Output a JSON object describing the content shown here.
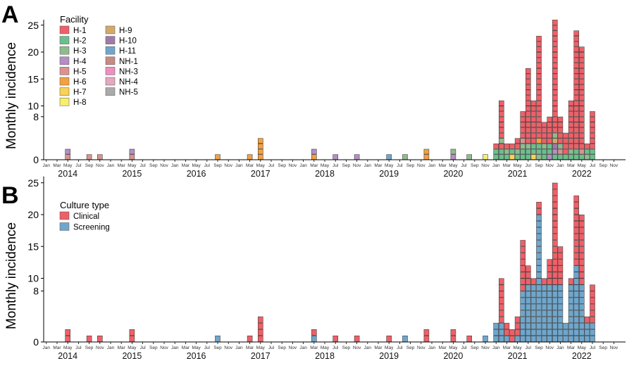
{
  "figure": {
    "months_axis": [
      "Jan",
      "Mar",
      "May",
      "Jul",
      "Sep",
      "Nov"
    ],
    "years": [
      "2014",
      "2015",
      "2016",
      "2017",
      "2018",
      "2019",
      "2020",
      "2021",
      "2022"
    ],
    "y_ticks": [
      0,
      8,
      10,
      15,
      20,
      25
    ],
    "panels": [
      {
        "letter": "A",
        "ylabel": "Monthly incidence",
        "legend_title": "Facility"
      },
      {
        "letter": "B",
        "ylabel": "Monthly incidence",
        "legend_title": "Culture type"
      }
    ]
  },
  "chart_data": [
    {
      "type": "bar",
      "stacked": true,
      "title": "",
      "xlabel": "",
      "ylabel": "Monthly incidence",
      "x_range": [
        "2013-12",
        "2022-12"
      ],
      "ylim": [
        0,
        26
      ],
      "y_ticks": [
        0,
        8,
        10,
        15,
        20,
        25
      ],
      "grid": false,
      "legend_position": "top-left",
      "legend_title": "Facility",
      "series": [
        {
          "name": "H-1",
          "color": "#ee6068"
        },
        {
          "name": "H-2",
          "color": "#6cbf8c"
        },
        {
          "name": "H-3",
          "color": "#8fbc8f"
        },
        {
          "name": "H-4",
          "color": "#b48ec4"
        },
        {
          "name": "H-5",
          "color": "#d9938f"
        },
        {
          "name": "H-6",
          "color": "#f4a040"
        },
        {
          "name": "H-7",
          "color": "#fad256"
        },
        {
          "name": "H-8",
          "color": "#f7ee6e"
        },
        {
          "name": "H-9",
          "color": "#d5a96a"
        },
        {
          "name": "H-10",
          "color": "#a27aa8"
        },
        {
          "name": "H-11",
          "color": "#6fa6cc"
        },
        {
          "name": "NH-1",
          "color": "#c78a84"
        },
        {
          "name": "NH-3",
          "color": "#ef8fc0"
        },
        {
          "name": "NH-4",
          "color": "#e2a9c0"
        },
        {
          "name": "NH-5",
          "color": "#aaaaaa"
        }
      ],
      "bars": [
        {
          "month": "2014-05",
          "segments": [
            [
              "H-5",
              1
            ],
            [
              "H-4",
              1
            ]
          ]
        },
        {
          "month": "2014-09",
          "segments": [
            [
              "H-5",
              1
            ]
          ]
        },
        {
          "month": "2014-11",
          "segments": [
            [
              "H-5",
              1
            ]
          ]
        },
        {
          "month": "2015-05",
          "segments": [
            [
              "H-5",
              1
            ],
            [
              "H-4",
              1
            ]
          ]
        },
        {
          "month": "2016-09",
          "segments": [
            [
              "H-6",
              1
            ]
          ]
        },
        {
          "month": "2017-03",
          "segments": [
            [
              "H-6",
              1
            ]
          ]
        },
        {
          "month": "2017-05",
          "segments": [
            [
              "H-6",
              4
            ]
          ]
        },
        {
          "month": "2018-03",
          "segments": [
            [
              "H-6",
              1
            ],
            [
              "H-4",
              1
            ]
          ]
        },
        {
          "month": "2018-07",
          "segments": [
            [
              "H-4",
              1
            ]
          ]
        },
        {
          "month": "2018-11",
          "segments": [
            [
              "H-4",
              1
            ]
          ]
        },
        {
          "month": "2019-05",
          "segments": [
            [
              "H-11",
              1
            ]
          ]
        },
        {
          "month": "2019-08",
          "segments": [
            [
              "H-3",
              1
            ]
          ]
        },
        {
          "month": "2019-12",
          "segments": [
            [
              "H-6",
              2
            ]
          ]
        },
        {
          "month": "2020-05",
          "segments": [
            [
              "H-4",
              1
            ],
            [
              "H-3",
              1
            ]
          ]
        },
        {
          "month": "2020-08",
          "segments": [
            [
              "H-3",
              1
            ]
          ]
        },
        {
          "month": "2020-11",
          "segments": [
            [
              "H-8",
              1
            ]
          ]
        },
        {
          "month": "2021-01",
          "segments": [
            [
              "H-2",
              2
            ],
            [
              "H-1",
              1
            ]
          ]
        },
        {
          "month": "2021-02",
          "segments": [
            [
              "H-2",
              2
            ],
            [
              "H-1",
              1
            ],
            [
              "H-3",
              1
            ],
            [
              "H-1",
              7
            ]
          ]
        },
        {
          "month": "2021-03",
          "segments": [
            [
              "H-2",
              1
            ],
            [
              "H-3",
              1
            ],
            [
              "H-1",
              1
            ]
          ]
        },
        {
          "month": "2021-04",
          "segments": [
            [
              "H-7",
              1
            ],
            [
              "H-2",
              1
            ],
            [
              "H-1",
              1
            ]
          ]
        },
        {
          "month": "2021-05",
          "segments": [
            [
              "H-2",
              1
            ],
            [
              "H-3",
              1
            ],
            [
              "H-1",
              2
            ]
          ]
        },
        {
          "month": "2021-06",
          "segments": [
            [
              "H-2",
              2
            ],
            [
              "H-3",
              1
            ],
            [
              "H-5",
              1
            ],
            [
              "H-1",
              5
            ]
          ]
        },
        {
          "month": "2021-07",
          "segments": [
            [
              "H-2",
              2
            ],
            [
              "H-3",
              1
            ],
            [
              "H-1",
              14
            ]
          ]
        },
        {
          "month": "2021-08",
          "segments": [
            [
              "H-7",
              1
            ],
            [
              "H-2",
              2
            ],
            [
              "H-1",
              8
            ]
          ]
        },
        {
          "month": "2021-09",
          "segments": [
            [
              "H-3",
              1
            ],
            [
              "H-2",
              2
            ],
            [
              "H-6",
              1
            ],
            [
              "H-1",
              19
            ]
          ]
        },
        {
          "month": "2021-10",
          "segments": [
            [
              "H-2",
              2
            ],
            [
              "H-3",
              1
            ],
            [
              "H-1",
              4
            ]
          ]
        },
        {
          "month": "2021-11",
          "segments": [
            [
              "H-4",
              1
            ],
            [
              "H-2",
              2
            ],
            [
              "H-1",
              5
            ]
          ]
        },
        {
          "month": "2021-12",
          "segments": [
            [
              "H-2",
              1
            ],
            [
              "H-4",
              1
            ],
            [
              "H-10",
              1
            ],
            [
              "H-9",
              1
            ],
            [
              "H-3",
              1
            ],
            [
              "H-1",
              21
            ]
          ]
        },
        {
          "month": "2022-01",
          "segments": [
            [
              "H-2",
              1
            ],
            [
              "H-5",
              1
            ],
            [
              "H-3",
              1
            ],
            [
              "H-1",
              5
            ]
          ]
        },
        {
          "month": "2022-02",
          "segments": [
            [
              "H-2",
              1
            ],
            [
              "H-1",
              4
            ]
          ]
        },
        {
          "month": "2022-03",
          "segments": [
            [
              "H-2",
              1
            ],
            [
              "H-3",
              1
            ],
            [
              "H-1",
              9
            ]
          ]
        },
        {
          "month": "2022-04",
          "segments": [
            [
              "H-2",
              2
            ],
            [
              "H-1",
              22
            ]
          ]
        },
        {
          "month": "2022-05",
          "segments": [
            [
              "H-2",
              1
            ],
            [
              "H-5",
              1
            ],
            [
              "H-1",
              19
            ]
          ]
        },
        {
          "month": "2022-06",
          "segments": [
            [
              "H-3",
              1
            ],
            [
              "H-2",
              1
            ],
            [
              "H-1",
              1
            ]
          ]
        },
        {
          "month": "2022-07",
          "segments": [
            [
              "H-2",
              2
            ],
            [
              "H-1",
              7
            ]
          ]
        }
      ]
    },
    {
      "type": "bar",
      "stacked": true,
      "title": "",
      "xlabel": "",
      "ylabel": "Monthly incidence",
      "x_range": [
        "2013-12",
        "2022-12"
      ],
      "ylim": [
        0,
        26
      ],
      "y_ticks": [
        0,
        8,
        10,
        15,
        20,
        25
      ],
      "grid": false,
      "legend_position": "top-left",
      "legend_title": "Culture type",
      "series": [
        {
          "name": "Clinical",
          "color": "#ee6068"
        },
        {
          "name": "Screening",
          "color": "#6fa6cc"
        }
      ],
      "bars": [
        {
          "month": "2014-05",
          "segments": [
            [
              "Clinical",
              2
            ]
          ]
        },
        {
          "month": "2014-09",
          "segments": [
            [
              "Clinical",
              1
            ]
          ]
        },
        {
          "month": "2014-11",
          "segments": [
            [
              "Clinical",
              1
            ]
          ]
        },
        {
          "month": "2015-05",
          "segments": [
            [
              "Clinical",
              2
            ]
          ]
        },
        {
          "month": "2016-09",
          "segments": [
            [
              "Screening",
              1
            ]
          ]
        },
        {
          "month": "2017-03",
          "segments": [
            [
              "Clinical",
              1
            ]
          ]
        },
        {
          "month": "2017-05",
          "segments": [
            [
              "Clinical",
              4
            ]
          ]
        },
        {
          "month": "2018-03",
          "segments": [
            [
              "Screening",
              1
            ],
            [
              "Clinical",
              1
            ]
          ]
        },
        {
          "month": "2018-07",
          "segments": [
            [
              "Clinical",
              1
            ]
          ]
        },
        {
          "month": "2018-11",
          "segments": [
            [
              "Clinical",
              1
            ]
          ]
        },
        {
          "month": "2019-05",
          "segments": [
            [
              "Clinical",
              1
            ]
          ]
        },
        {
          "month": "2019-08",
          "segments": [
            [
              "Screening",
              1
            ]
          ]
        },
        {
          "month": "2019-12",
          "segments": [
            [
              "Clinical",
              2
            ]
          ]
        },
        {
          "month": "2020-05",
          "segments": [
            [
              "Clinical",
              2
            ]
          ]
        },
        {
          "month": "2020-08",
          "segments": [
            [
              "Clinical",
              1
            ]
          ]
        },
        {
          "month": "2020-11",
          "segments": [
            [
              "Screening",
              1
            ]
          ]
        },
        {
          "month": "2021-01",
          "segments": [
            [
              "Screening",
              3
            ]
          ]
        },
        {
          "month": "2021-02",
          "segments": [
            [
              "Screening",
              3
            ],
            [
              "Clinical",
              7
            ]
          ]
        },
        {
          "month": "2021-03",
          "segments": [
            [
              "Screening",
              1
            ],
            [
              "Clinical",
              2
            ]
          ]
        },
        {
          "month": "2021-04",
          "segments": [
            [
              "Clinical",
              2
            ]
          ]
        },
        {
          "month": "2021-05",
          "segments": [
            [
              "Screening",
              1
            ],
            [
              "Clinical",
              3
            ]
          ]
        },
        {
          "month": "2021-06",
          "segments": [
            [
              "Screening",
              8
            ],
            [
              "Clinical",
              8
            ]
          ]
        },
        {
          "month": "2021-07",
          "segments": [
            [
              "Screening",
              9
            ],
            [
              "Clinical",
              3
            ]
          ]
        },
        {
          "month": "2021-08",
          "segments": [
            [
              "Screening",
              9
            ],
            [
              "Clinical",
              1
            ]
          ]
        },
        {
          "month": "2021-09",
          "segments": [
            [
              "Screening",
              20
            ],
            [
              "Clinical",
              2
            ]
          ]
        },
        {
          "month": "2021-10",
          "segments": [
            [
              "Screening",
              9
            ],
            [
              "Clinical",
              1
            ]
          ]
        },
        {
          "month": "2021-11",
          "segments": [
            [
              "Screening",
              9
            ],
            [
              "Clinical",
              4
            ]
          ]
        },
        {
          "month": "2021-12",
          "segments": [
            [
              "Screening",
              9
            ],
            [
              "Clinical",
              16
            ]
          ]
        },
        {
          "month": "2022-01",
          "segments": [
            [
              "Screening",
              9
            ],
            [
              "Clinical",
              6
            ]
          ]
        },
        {
          "month": "2022-02",
          "segments": [
            [
              "Screening",
              3
            ]
          ]
        },
        {
          "month": "2022-03",
          "segments": [
            [
              "Screening",
              9
            ],
            [
              "Clinical",
              1
            ]
          ]
        },
        {
          "month": "2022-04",
          "segments": [
            [
              "Screening",
              12
            ],
            [
              "Clinical",
              11
            ]
          ]
        },
        {
          "month": "2022-05",
          "segments": [
            [
              "Screening",
              9
            ],
            [
              "Clinical",
              11
            ]
          ]
        },
        {
          "month": "2022-06",
          "segments": [
            [
              "Screening",
              3
            ],
            [
              "Clinical",
              1
            ]
          ]
        },
        {
          "month": "2022-07",
          "segments": [
            [
              "Screening",
              3
            ],
            [
              "Clinical",
              6
            ]
          ]
        }
      ]
    }
  ]
}
